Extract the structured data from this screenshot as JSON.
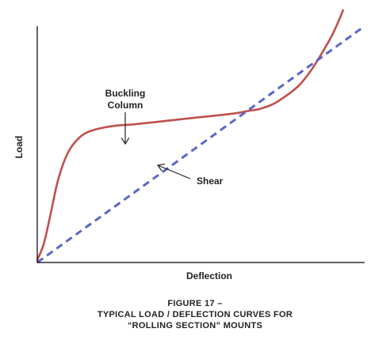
{
  "chart_data": {
    "type": "line",
    "xlabel": "Deflection",
    "ylabel": "Load",
    "xlim": [
      0,
      100
    ],
    "ylim": [
      0,
      100
    ],
    "grid": false,
    "ticks": false,
    "series": [
      {
        "name": "Buckling Column",
        "style": "solid",
        "color": "#C0504D",
        "x": [
          0,
          2,
          4,
          6,
          8,
          10,
          13,
          16,
          20,
          25,
          30,
          40,
          50,
          60,
          64,
          68,
          72,
          76,
          80,
          84,
          88,
          90,
          92,
          93.5
        ],
        "y": [
          1,
          8,
          20,
          33,
          42,
          48,
          53,
          55.5,
          57,
          58,
          58.5,
          60,
          61.5,
          63,
          64,
          65,
          67,
          70.5,
          75,
          82,
          91,
          96,
          102,
          107
        ]
      },
      {
        "name": "Shear",
        "style": "dashed",
        "color": "#5A67C8",
        "x": [
          0,
          100
        ],
        "y": [
          0,
          100
        ]
      }
    ],
    "annotations": [
      {
        "text_lines": [
          "Buckling",
          "Column"
        ],
        "series": "Buckling Column"
      },
      {
        "text": "Shear",
        "series": "Shear"
      }
    ]
  },
  "caption": {
    "line1": "FIGURE 17 –",
    "line2": "TYPICAL LOAD / DEFLECTION CURVES FOR",
    "line3": "“ROLLING SECTION” MOUNTS"
  },
  "colors": {
    "axis": "#000000",
    "buckling": "#C0504D",
    "shear": "#5A67C8",
    "arrow": "#222222"
  }
}
